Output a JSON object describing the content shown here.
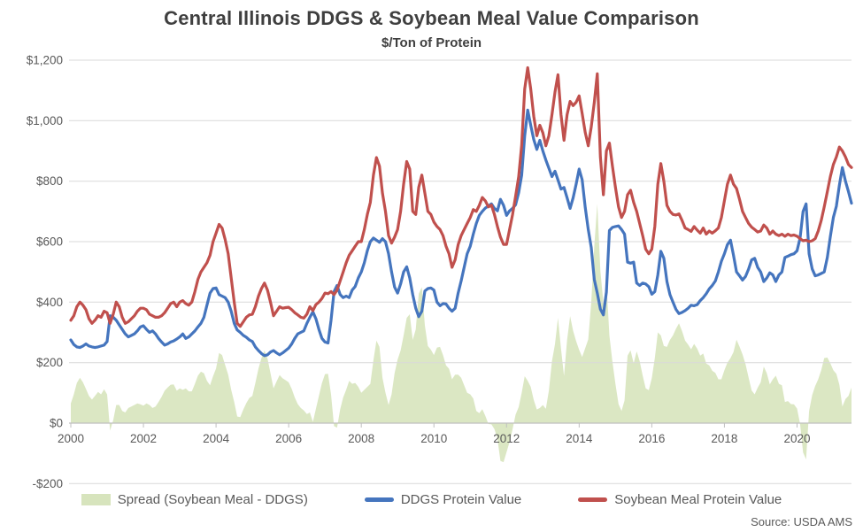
{
  "title": "Central Illinois DDGS & Soybean Meal Value Comparison",
  "subtitle": "$/Ton of Protein",
  "source": "Source: USDA AMS",
  "colors": {
    "spread_fill": "#D7E4BD",
    "ddgs_line": "#4575BE",
    "meal_line": "#C0504D",
    "gridline": "#D9D9D9",
    "axis_line": "#BFBFBF",
    "axis_text": "#595959",
    "title_text": "#3F3F3F"
  },
  "legend": {
    "spread_label": "Spread (Soybean Meal - DDGS)",
    "ddgs_label": "DDGS Protein Value",
    "meal_label": "Soybean Meal Protein Value"
  },
  "chart_data": {
    "type": "line+area",
    "title": "Central Illinois DDGS & Soybean Meal Value Comparison",
    "subtitle": "$/Ton of Protein",
    "x_start": {
      "year": 2000,
      "month": 1
    },
    "x_step_months": 1,
    "x_tick_labels": [
      "2000",
      "2002",
      "2004",
      "2006",
      "2008",
      "2010",
      "2012",
      "2014",
      "2016",
      "2018",
      "2020"
    ],
    "y_axis": {
      "min": -200,
      "max": 1200,
      "tick_interval": 200,
      "tick_labels_top_to_bottom": [
        "$1,200",
        "$1,000",
        "$800",
        "$600",
        "$400",
        "$200",
        "$0",
        "-$200"
      ]
    },
    "grid": "horizontal",
    "legend_position": "bottom",
    "spread_note": "Green area series equals soybean_meal minus ddgs for each month, plotted from a $0 baseline",
    "series": [
      {
        "name": "DDGS Protein Value",
        "type": "line",
        "monthly_values": [
          275,
          260,
          252,
          250,
          255,
          262,
          255,
          252,
          250,
          252,
          255,
          258,
          270,
          355,
          350,
          340,
          325,
          310,
          295,
          285,
          290,
          295,
          305,
          318,
          322,
          310,
          300,
          305,
          295,
          280,
          268,
          258,
          262,
          268,
          272,
          278,
          285,
          295,
          280,
          285,
          295,
          305,
          318,
          330,
          350,
          390,
          430,
          445,
          447,
          425,
          420,
          415,
          400,
          370,
          330,
          308,
          300,
          290,
          284,
          275,
          270,
          252,
          240,
          230,
          223,
          226,
          235,
          240,
          232,
          226,
          232,
          240,
          248,
          262,
          280,
          295,
          300,
          305,
          330,
          350,
          368,
          345,
          310,
          280,
          268,
          265,
          340,
          435,
          455,
          425,
          415,
          420,
          415,
          440,
          452,
          480,
          500,
          530,
          570,
          600,
          612,
          605,
          598,
          610,
          600,
          560,
          500,
          450,
          430,
          460,
          500,
          517,
          480,
          425,
          380,
          352,
          370,
          437,
          445,
          447,
          440,
          400,
          388,
          395,
          394,
          380,
          370,
          380,
          430,
          470,
          515,
          560,
          585,
          625,
          660,
          687,
          700,
          711,
          718,
          725,
          710,
          702,
          740,
          720,
          687,
          702,
          710,
          722,
          762,
          820,
          950,
          1035,
          985,
          938,
          905,
          935,
          900,
          870,
          843,
          815,
          833,
          804,
          774,
          779,
          745,
          710,
          745,
          790,
          840,
          805,
          713,
          640,
          580,
          475,
          430,
          377,
          358,
          433,
          637,
          647,
          650,
          652,
          640,
          625,
          532,
          529,
          532,
          463,
          455,
          463,
          460,
          451,
          426,
          435,
          490,
          568,
          545,
          468,
          425,
          400,
          376,
          362,
          366,
          372,
          380,
          390,
          388,
          392,
          405,
          415,
          428,
          444,
          455,
          470,
          500,
          535,
          560,
          590,
          605,
          555,
          500,
          487,
          473,
          485,
          510,
          540,
          545,
          515,
          500,
          468,
          480,
          497,
          490,
          468,
          490,
          500,
          548,
          552,
          557,
          560,
          570,
          612,
          700,
          725,
          560,
          510,
          487,
          490,
          495,
          500,
          548,
          617,
          680,
          717,
          786,
          845,
          800,
          765,
          727
        ]
      },
      {
        "name": "Soybean Meal Protein Value",
        "type": "line",
        "monthly_values": [
          340,
          355,
          385,
          400,
          390,
          375,
          345,
          330,
          340,
          355,
          350,
          370,
          365,
          330,
          360,
          400,
          385,
          350,
          330,
          335,
          345,
          355,
          370,
          380,
          380,
          375,
          360,
          355,
          350,
          350,
          355,
          365,
          380,
          395,
          400,
          385,
          400,
          405,
          395,
          390,
          400,
          435,
          475,
          500,
          515,
          530,
          555,
          600,
          628,
          657,
          645,
          608,
          560,
          480,
          400,
          330,
          320,
          335,
          350,
          358,
          360,
          385,
          420,
          445,
          463,
          440,
          400,
          355,
          370,
          385,
          380,
          382,
          383,
          375,
          365,
          358,
          350,
          347,
          360,
          385,
          372,
          392,
          400,
          412,
          430,
          428,
          435,
          425,
          440,
          470,
          500,
          530,
          555,
          570,
          585,
          600,
          600,
          640,
          690,
          730,
          820,
          878,
          850,
          760,
          700,
          620,
          595,
          615,
          640,
          700,
          790,
          865,
          840,
          700,
          690,
          780,
          820,
          760,
          700,
          690,
          665,
          650,
          640,
          620,
          585,
          560,
          515,
          540,
          590,
          620,
          640,
          660,
          680,
          706,
          700,
          720,
          746,
          735,
          715,
          721,
          690,
          650,
          615,
          591,
          591,
          640,
          690,
          750,
          815,
          920,
          1105,
          1175,
          1105,
          1015,
          950,
          985,
          960,
          917,
          950,
          1020,
          1094,
          1152,
          1020,
          935,
          1020,
          1064,
          1050,
          1061,
          1082,
          1024,
          961,
          917,
          980,
          1060,
          1155,
          880,
          755,
          900,
          926,
          850,
          780,
          715,
          680,
          700,
          755,
          770,
          730,
          700,
          660,
          620,
          575,
          560,
          575,
          650,
          790,
          858,
          800,
          720,
          700,
          690,
          688,
          692,
          670,
          645,
          640,
          634,
          650,
          638,
          628,
          645,
          625,
          635,
          628,
          636,
          645,
          680,
          735,
          790,
          820,
          790,
          776,
          740,
          700,
          680,
          660,
          648,
          640,
          632,
          635,
          655,
          645,
          625,
          635,
          625,
          620,
          625,
          618,
          625,
          620,
          622,
          618,
          610,
          603,
          605,
          600,
          603,
          610,
          635,
          670,
          715,
          765,
          815,
          855,
          880,
          913,
          900,
          880,
          855,
          845
        ]
      }
    ]
  }
}
